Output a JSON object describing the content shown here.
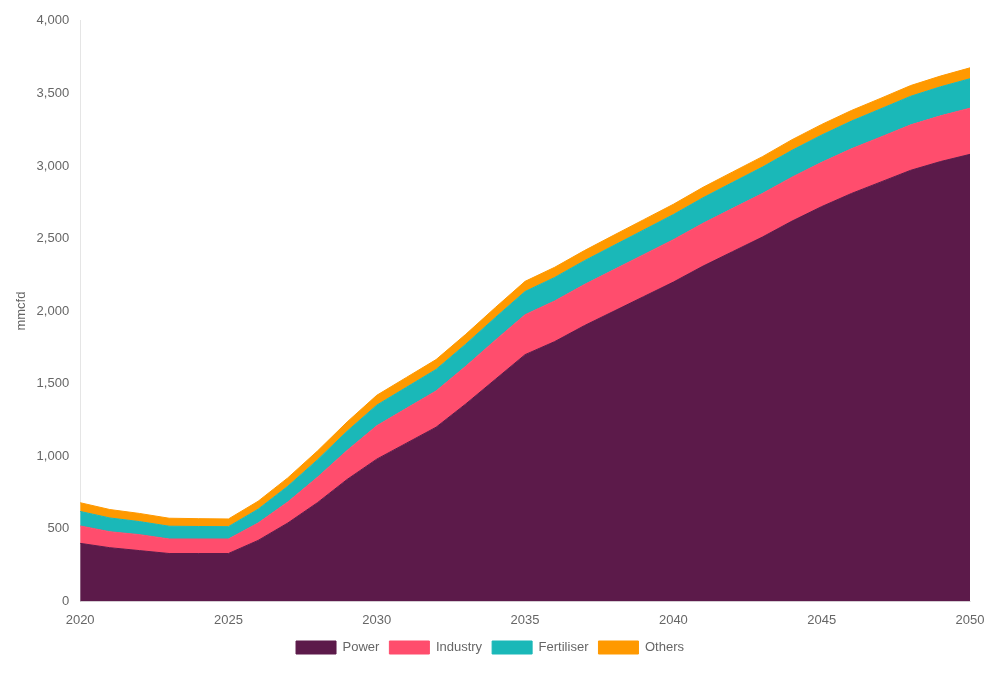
{
  "chart_data": {
    "type": "area",
    "stacked": true,
    "x": [
      2020,
      2021,
      2022,
      2023,
      2024,
      2025,
      2026,
      2027,
      2028,
      2029,
      2030,
      2031,
      2032,
      2033,
      2034,
      2035,
      2036,
      2037,
      2038,
      2039,
      2040,
      2041,
      2042,
      2043,
      2044,
      2045,
      2046,
      2047,
      2048,
      2049,
      2050
    ],
    "series": [
      {
        "name": "Power",
        "color": "#5c1a4a",
        "values": [
          400,
          370,
          350,
          330,
          330,
          330,
          420,
          540,
          680,
          840,
          980,
          1090,
          1200,
          1360,
          1530,
          1700,
          1790,
          1900,
          2000,
          2100,
          2200,
          2310,
          2410,
          2510,
          2620,
          2720,
          2810,
          2890,
          2970,
          3030,
          3080
        ]
      },
      {
        "name": "Industry",
        "color": "#ff4d6d",
        "values": [
          120,
          110,
          110,
          100,
          100,
          100,
          120,
          145,
          175,
          200,
          230,
          240,
          250,
          260,
          270,
          275,
          280,
          283,
          286,
          289,
          292,
          295,
          298,
          300,
          303,
          305,
          308,
          310,
          313,
          315,
          318
        ]
      },
      {
        "name": "Fertiliser",
        "color": "#1ab8b8",
        "values": [
          100,
          95,
          90,
          88,
          86,
          85,
          95,
          108,
          120,
          132,
          142,
          145,
          148,
          152,
          156,
          160,
          162,
          164,
          167,
          170,
          173,
          176,
          179,
          182,
          185,
          188,
          191,
          194,
          197,
          200,
          203
        ]
      },
      {
        "name": "Others",
        "color": "#ff9900",
        "values": [
          60,
          58,
          56,
          55,
          54,
          53,
          55,
          58,
          61,
          64,
          68,
          68,
          68,
          68,
          69,
          70,
          70,
          70,
          71,
          71,
          71,
          72,
          72,
          72,
          73,
          73,
          73,
          73,
          74,
          74,
          75
        ]
      }
    ],
    "y_label": "mmcfd",
    "xlim": [
      2020,
      2050
    ],
    "xticks": [
      2020,
      2025,
      2030,
      2035,
      2040,
      2045,
      2050
    ],
    "ylim": [
      0,
      4000
    ],
    "yticks": [
      0,
      500,
      {
        "value": 1000,
        "label": "1,000"
      },
      {
        "value": 1500,
        "label": "1,500"
      },
      {
        "value": 2000,
        "label": "2,000"
      },
      {
        "value": 2500,
        "label": "2,500"
      },
      {
        "value": 3000,
        "label": "3,000"
      },
      {
        "value": 3500,
        "label": "3,500"
      },
      {
        "value": 4000,
        "label": "4,000"
      }
    ],
    "grid": false,
    "legend": "bottom"
  }
}
